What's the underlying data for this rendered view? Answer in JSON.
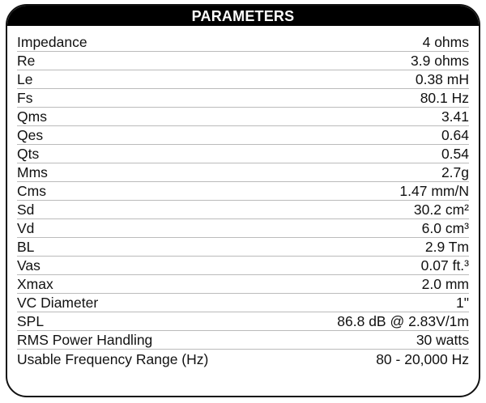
{
  "title": "PARAMETERS",
  "rows": [
    {
      "label": "Impedance",
      "value": "4 ohms"
    },
    {
      "label": "Re",
      "value": "3.9 ohms"
    },
    {
      "label": "Le",
      "value": "0.38 mH"
    },
    {
      "label": "Fs",
      "value": "80.1 Hz"
    },
    {
      "label": "Qms",
      "value": "3.41"
    },
    {
      "label": "Qes",
      "value": "0.64"
    },
    {
      "label": "Qts",
      "value": "0.54"
    },
    {
      "label": "Mms",
      "value": "2.7g"
    },
    {
      "label": "Cms",
      "value": "1.47 mm/N"
    },
    {
      "label": "Sd",
      "value": "30.2 cm²"
    },
    {
      "label": "Vd",
      "value": "6.0 cm³"
    },
    {
      "label": "BL",
      "value": "2.9 Tm"
    },
    {
      "label": "Vas",
      "value": "0.07 ft.³"
    },
    {
      "label": "Xmax",
      "value": "2.0 mm"
    },
    {
      "label": "VC Diameter",
      "value": "1\""
    },
    {
      "label": "SPL",
      "value": "86.8 dB @ 2.83V/1m"
    },
    {
      "label": "RMS Power Handling",
      "value": "30 watts"
    },
    {
      "label": "Usable Frequency Range (Hz)",
      "value": "80 - 20,000 Hz"
    }
  ]
}
